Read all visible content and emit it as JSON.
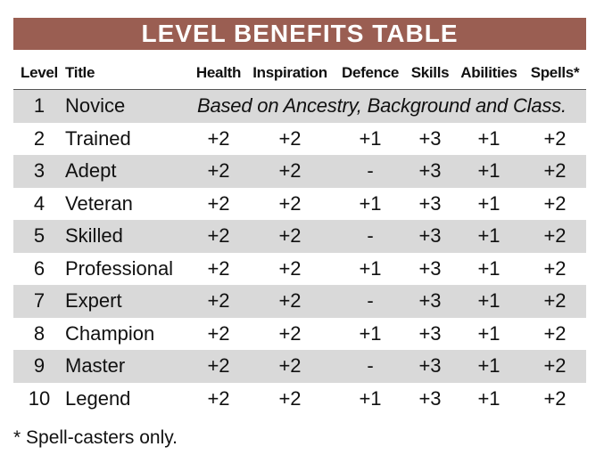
{
  "title": "LEVEL BENEFITS TABLE",
  "headers": [
    "Level",
    "Title",
    "Health",
    "Inspiration",
    "Defence",
    "Skills",
    "Abilities",
    "Spells*"
  ],
  "rows": [
    {
      "level": "1",
      "title": "Novice",
      "note": "Based on Ancestry, Background and Class."
    },
    {
      "level": "2",
      "title": "Trained",
      "values": [
        "+2",
        "+2",
        "+1",
        "+3",
        "+1",
        "+2"
      ]
    },
    {
      "level": "3",
      "title": "Adept",
      "values": [
        "+2",
        "+2",
        "-",
        "+3",
        "+1",
        "+2"
      ]
    },
    {
      "level": "4",
      "title": "Veteran",
      "values": [
        "+2",
        "+2",
        "+1",
        "+3",
        "+1",
        "+2"
      ]
    },
    {
      "level": "5",
      "title": "Skilled",
      "values": [
        "+2",
        "+2",
        "-",
        "+3",
        "+1",
        "+2"
      ]
    },
    {
      "level": "6",
      "title": "Professional",
      "values": [
        "+2",
        "+2",
        "+1",
        "+3",
        "+1",
        "+2"
      ]
    },
    {
      "level": "7",
      "title": "Expert",
      "values": [
        "+2",
        "+2",
        "-",
        "+3",
        "+1",
        "+2"
      ]
    },
    {
      "level": "8",
      "title": "Champion",
      "values": [
        "+2",
        "+2",
        "+1",
        "+3",
        "+1",
        "+2"
      ]
    },
    {
      "level": "9",
      "title": "Master",
      "values": [
        "+2",
        "+2",
        "-",
        "+3",
        "+1",
        "+2"
      ]
    },
    {
      "level": "10",
      "title": "Legend",
      "values": [
        "+2",
        "+2",
        "+1",
        "+3",
        "+1",
        "+2"
      ]
    }
  ],
  "footnote": "* Spell-casters only.",
  "colors": {
    "title_bar": "#9a5e52",
    "row_shade": "#d9d9d9"
  }
}
